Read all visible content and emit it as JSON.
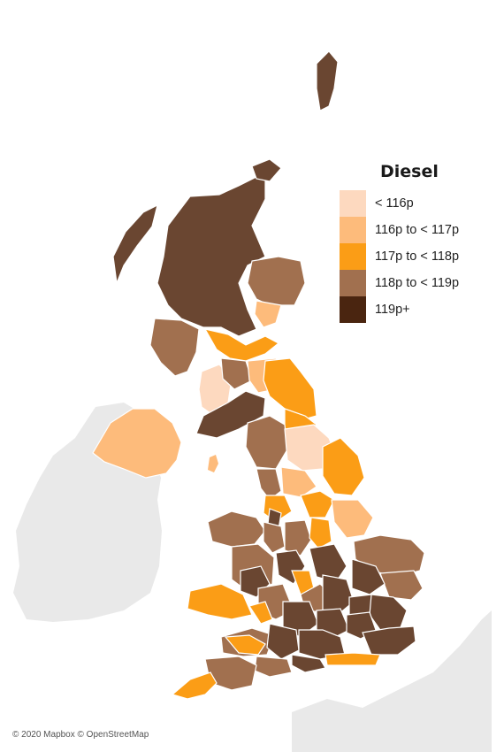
{
  "legend": {
    "title": "Diesel",
    "items": [
      {
        "label": "< 116p",
        "color": "#fdd9bf"
      },
      {
        "label": "116p to < 117p",
        "color": "#fdbb7b"
      },
      {
        "label": "117p to < 118p",
        "color": "#fb9d16"
      },
      {
        "label": "118p to < 119p",
        "color": "#a1704f"
      },
      {
        "label": "119p+",
        "color": "#4a2510"
      }
    ]
  },
  "colors": {
    "land_other": "#e9e9e9",
    "border": "#ffffff",
    "background": "#ffffff"
  },
  "attribution": "© 2020 Mapbox © OpenStreetMap"
}
